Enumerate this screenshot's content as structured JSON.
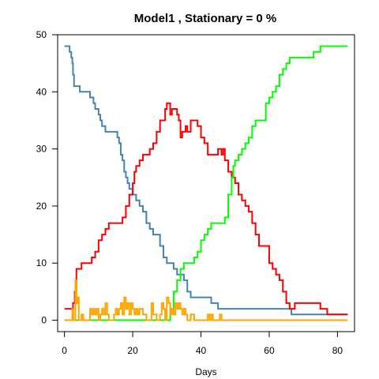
{
  "chart_data": {
    "type": "line",
    "step": true,
    "title": "Model1 , Stationary = 0 %",
    "xlabel": "Days",
    "ylabel": "",
    "xlim": [
      -2,
      85
    ],
    "ylim": [
      -2,
      50
    ],
    "xticks": [
      0,
      20,
      40,
      60,
      80
    ],
    "yticks": [
      0,
      10,
      20,
      30,
      40,
      50
    ],
    "legend": "none",
    "grid": false,
    "series": [
      {
        "color": "#4682B4",
        "points": [
          [
            0,
            48
          ],
          [
            1,
            48
          ],
          [
            1.5,
            47
          ],
          [
            2,
            46
          ],
          [
            2.3,
            45
          ],
          [
            2.5,
            43
          ],
          [
            2.8,
            41
          ],
          [
            4,
            41
          ],
          [
            4.5,
            40
          ],
          [
            7,
            40
          ],
          [
            7.5,
            39
          ],
          [
            8,
            39
          ],
          [
            8.5,
            38
          ],
          [
            9,
            37
          ],
          [
            10,
            36
          ],
          [
            10.5,
            35
          ],
          [
            11,
            34
          ],
          [
            12,
            33
          ],
          [
            15,
            33
          ],
          [
            15.5,
            32
          ],
          [
            16,
            31
          ],
          [
            16.5,
            29
          ],
          [
            17,
            28
          ],
          [
            17.5,
            26
          ],
          [
            18,
            25
          ],
          [
            18.5,
            24
          ],
          [
            19,
            23
          ],
          [
            20,
            22
          ],
          [
            21,
            21
          ],
          [
            22,
            20
          ],
          [
            23,
            19
          ],
          [
            24,
            17
          ],
          [
            25,
            16
          ],
          [
            26,
            15
          ],
          [
            27.5,
            15
          ],
          [
            28,
            13
          ],
          [
            29,
            11
          ],
          [
            30,
            10
          ],
          [
            31,
            10
          ],
          [
            32,
            9
          ],
          [
            33,
            8
          ],
          [
            35,
            7
          ],
          [
            36,
            5
          ],
          [
            37,
            4
          ],
          [
            42,
            4
          ],
          [
            43,
            3
          ],
          [
            45,
            2
          ],
          [
            65,
            2
          ],
          [
            66,
            2
          ],
          [
            66.5,
            1
          ],
          [
            83,
            1
          ]
        ]
      },
      {
        "color": "#FF0000",
        "points": [
          [
            0,
            2
          ],
          [
            2,
            2
          ],
          [
            2.5,
            3
          ],
          [
            3,
            5
          ],
          [
            3.5,
            9
          ],
          [
            4.5,
            9
          ],
          [
            5,
            10
          ],
          [
            7,
            10
          ],
          [
            8,
            11
          ],
          [
            9,
            12
          ],
          [
            10,
            14
          ],
          [
            11,
            15
          ],
          [
            12,
            16
          ],
          [
            13,
            17
          ],
          [
            16,
            17
          ],
          [
            17,
            18
          ],
          [
            18,
            20
          ],
          [
            19,
            22
          ],
          [
            20,
            24
          ],
          [
            20.5,
            26
          ],
          [
            21,
            27
          ],
          [
            22,
            28
          ],
          [
            23,
            29
          ],
          [
            24,
            29
          ],
          [
            25,
            30
          ],
          [
            26,
            31
          ],
          [
            27,
            33
          ],
          [
            28,
            35
          ],
          [
            29,
            35
          ],
          [
            29.5,
            37
          ],
          [
            30,
            38
          ],
          [
            30.5,
            38
          ],
          [
            31,
            36
          ],
          [
            31.5,
            37
          ],
          [
            32,
            37
          ],
          [
            33,
            36
          ],
          [
            33.5,
            35
          ],
          [
            34,
            32
          ],
          [
            34.5,
            33
          ],
          [
            35,
            33
          ],
          [
            35.5,
            34
          ],
          [
            36,
            33
          ],
          [
            37,
            35
          ],
          [
            38,
            35
          ],
          [
            39,
            34
          ],
          [
            40,
            32
          ],
          [
            41,
            31
          ],
          [
            42,
            29
          ],
          [
            44,
            29
          ],
          [
            45,
            30
          ],
          [
            46,
            29
          ],
          [
            46.5,
            30
          ],
          [
            47,
            28
          ],
          [
            48,
            26
          ],
          [
            49,
            25
          ],
          [
            50,
            24
          ],
          [
            51,
            22
          ],
          [
            52,
            21
          ],
          [
            53,
            20
          ],
          [
            54,
            19
          ],
          [
            55,
            17
          ],
          [
            56,
            15
          ],
          [
            57,
            13
          ],
          [
            59,
            13
          ],
          [
            60,
            10
          ],
          [
            61,
            9
          ],
          [
            62,
            8
          ],
          [
            63,
            7
          ],
          [
            64,
            5
          ],
          [
            65,
            3
          ],
          [
            66,
            2
          ],
          [
            67,
            2
          ],
          [
            67.5,
            3
          ],
          [
            74,
            3
          ],
          [
            75,
            2
          ],
          [
            77,
            1
          ],
          [
            83,
            1
          ]
        ]
      },
      {
        "color": "#00FF00",
        "points": [
          [
            0,
            0
          ],
          [
            30,
            0
          ],
          [
            31,
            2
          ],
          [
            32,
            5
          ],
          [
            33,
            7
          ],
          [
            34,
            9
          ],
          [
            35,
            10
          ],
          [
            37,
            10
          ],
          [
            38,
            11
          ],
          [
            39,
            12
          ],
          [
            40,
            14
          ],
          [
            41,
            15
          ],
          [
            42,
            16
          ],
          [
            43,
            17
          ],
          [
            46,
            17
          ],
          [
            47,
            18
          ],
          [
            48,
            22
          ],
          [
            49,
            25
          ],
          [
            49.5,
            27
          ],
          [
            50,
            28
          ],
          [
            51,
            29
          ],
          [
            52,
            30
          ],
          [
            53,
            31
          ],
          [
            54,
            32
          ],
          [
            55,
            34
          ],
          [
            56,
            35
          ],
          [
            58,
            35
          ],
          [
            59,
            38
          ],
          [
            60,
            39
          ],
          [
            61,
            40
          ],
          [
            62,
            41
          ],
          [
            63,
            43
          ],
          [
            64,
            44
          ],
          [
            65,
            45
          ],
          [
            66,
            46
          ],
          [
            72,
            46
          ],
          [
            73,
            47
          ],
          [
            75,
            48
          ],
          [
            83,
            48
          ]
        ]
      },
      {
        "color": "#FFA500",
        "points": [
          [
            0,
            0
          ],
          [
            2,
            0
          ],
          [
            2.3,
            2
          ],
          [
            2.6,
            0
          ],
          [
            3,
            0
          ],
          [
            3.2,
            7
          ],
          [
            3.5,
            3
          ],
          [
            3.8,
            4
          ],
          [
            4.2,
            0
          ],
          [
            5,
            1
          ],
          [
            5.5,
            0
          ],
          [
            7,
            0
          ],
          [
            7.5,
            2
          ],
          [
            8,
            1
          ],
          [
            8.5,
            2
          ],
          [
            9,
            1
          ],
          [
            9.5,
            2
          ],
          [
            10,
            0
          ],
          [
            10.5,
            1
          ],
          [
            11,
            2
          ],
          [
            11.5,
            1
          ],
          [
            12,
            3
          ],
          [
            12.5,
            1
          ],
          [
            13,
            0
          ],
          [
            14,
            0
          ],
          [
            14.5,
            1
          ],
          [
            15,
            2
          ],
          [
            15.5,
            1
          ],
          [
            16,
            2
          ],
          [
            16.5,
            3
          ],
          [
            17,
            1
          ],
          [
            17.5,
            4
          ],
          [
            18,
            2
          ],
          [
            18.5,
            3
          ],
          [
            19,
            1
          ],
          [
            19.5,
            3
          ],
          [
            20,
            2
          ],
          [
            20.5,
            1
          ],
          [
            21,
            2
          ],
          [
            21.5,
            1
          ],
          [
            22,
            2
          ],
          [
            23,
            1
          ],
          [
            24,
            0
          ],
          [
            25,
            0
          ],
          [
            25.5,
            3
          ],
          [
            26,
            1
          ],
          [
            27,
            0
          ],
          [
            28,
            1
          ],
          [
            28.5,
            3
          ],
          [
            29,
            2
          ],
          [
            29.5,
            0
          ],
          [
            30,
            4
          ],
          [
            30.5,
            3
          ],
          [
            31,
            1
          ],
          [
            31.5,
            2
          ],
          [
            32,
            1
          ],
          [
            32.5,
            3
          ],
          [
            33,
            2
          ],
          [
            33.5,
            3
          ],
          [
            34,
            2
          ],
          [
            34.5,
            1
          ],
          [
            35,
            2
          ],
          [
            35.5,
            1
          ],
          [
            36,
            0
          ],
          [
            37,
            1
          ],
          [
            38,
            0
          ],
          [
            42,
            1
          ],
          [
            42.5,
            0
          ],
          [
            43,
            1
          ],
          [
            43.5,
            0
          ],
          [
            45,
            0
          ],
          [
            45.5,
            1
          ],
          [
            46,
            0
          ],
          [
            83,
            0
          ]
        ]
      }
    ]
  }
}
